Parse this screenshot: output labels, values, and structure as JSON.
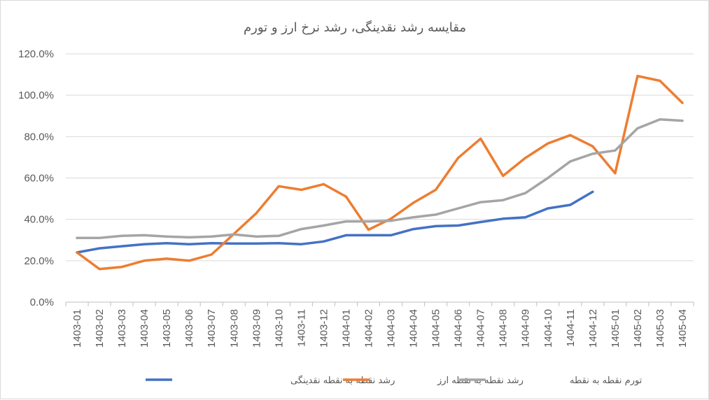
{
  "chart_data": {
    "type": "line",
    "title": "مقایسه رشد نقدینگی، رشد نرخ ارز و تورم",
    "categories": [
      "1403-01",
      "1403-02",
      "1403-03",
      "1403-04",
      "1403-05",
      "1403-06",
      "1403-07",
      "1403-08",
      "1403-09",
      "1403-10",
      "1403-11",
      "1403-12",
      "1404-01",
      "1404-02",
      "1404-03",
      "1404-04",
      "1404-05",
      "1404-06",
      "1404-07",
      "1404-08",
      "1404-09",
      "1404-10",
      "1404-11",
      "1404-12",
      "1405-01",
      "1405-02",
      "1405-03",
      "1405-04"
    ],
    "ylim": [
      0,
      120
    ],
    "yticks": [
      "0.0%",
      "20.0%",
      "40.0%",
      "60.0%",
      "80.0%",
      "100.0%",
      "120.0%"
    ],
    "grid": true,
    "legend_position": "bottom",
    "series": [
      {
        "name": "رشد نقطه به نقطه نقدینگی",
        "color": "#4472c4",
        "values": [
          24,
          26,
          27,
          28,
          28.5,
          28,
          28.5,
          28.3,
          28.3,
          28.5,
          28,
          29.3,
          32.3,
          32.3,
          32.3,
          35.3,
          36.7,
          37,
          38.7,
          40.3,
          41,
          45.3,
          47,
          53.3,
          null,
          null,
          null,
          null
        ]
      },
      {
        "name": "رشد نقطه به نقطه ارز",
        "color": "#ed7d31",
        "values": [
          24,
          16,
          17,
          20,
          21,
          20,
          23,
          33,
          43,
          56,
          54.3,
          57,
          51,
          35,
          40.3,
          48,
          54.3,
          69.7,
          79,
          61,
          69.7,
          76.7,
          80.7,
          75.3,
          62.3,
          109.3,
          107,
          96.3
        ]
      },
      {
        "name": "تورم نقطه به نقطه",
        "color": "#a5a5a5",
        "values": [
          31,
          31,
          32,
          32.3,
          31.7,
          31.3,
          31.7,
          32.7,
          31.7,
          32,
          35.3,
          37,
          39,
          39,
          39.3,
          41,
          42.3,
          45.3,
          48.3,
          49.3,
          52.7,
          60,
          68,
          71.7,
          73.3,
          84,
          88.3,
          87.7
        ]
      }
    ]
  }
}
